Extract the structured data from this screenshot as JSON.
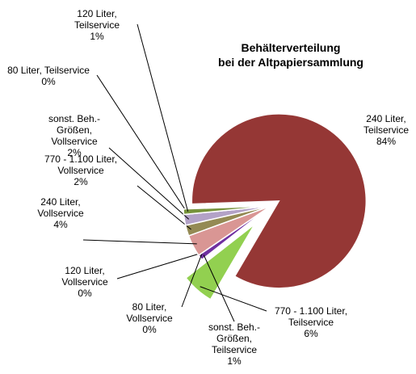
{
  "chart_data": {
    "type": "pie",
    "title": "Behälterverteilung\nbei der Altpapiersammlung",
    "categories": [
      "240 Liter,\nTeilservice",
      "770 - 1.100 Liter,\nTeilservice",
      "sonst. Beh.-\nGrößen,\nTeilservice",
      "80 Liter,\nVollservice",
      "120 Liter,\nVollservice",
      "240 Liter,\nVollservice",
      "770 - 1.100 Liter,\nVollservice",
      "sonst. Beh.-\nGrößen,\nVollservice",
      "80 Liter, Teilservice",
      "120 Liter,\nTeilservice"
    ],
    "values": [
      84,
      6,
      1,
      0,
      0,
      4,
      2,
      2,
      0,
      1
    ],
    "value_labels": [
      "84%",
      "6%",
      "1%",
      "0%",
      "0%",
      "4%",
      "2%",
      "2%",
      "0%",
      "1%"
    ],
    "colors": [
      "#953735",
      "#92d050",
      "#7030a0",
      "#1f497d",
      "#4f81bd",
      "#d99694",
      "#948a54",
      "#b3a2c7",
      "#4bacc6",
      "#77933c"
    ]
  }
}
